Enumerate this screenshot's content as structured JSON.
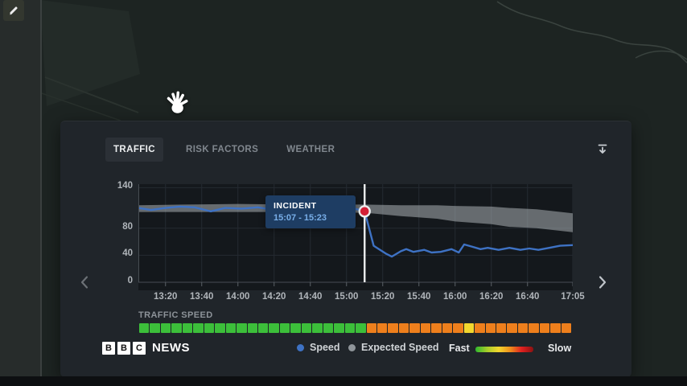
{
  "toolbar": {
    "edit_icon": "pencil-icon"
  },
  "map": {
    "cursor_icon": "open-hand-icon"
  },
  "panel": {
    "tabs": [
      {
        "label": "TRAFFIC",
        "active": true
      },
      {
        "label": "RISK FACTORS",
        "active": false
      },
      {
        "label": "WEATHER",
        "active": false
      }
    ],
    "collapse_icon": "collapse-down-icon",
    "prev_icon": "chevron-left-icon",
    "next_icon": "chevron-right-icon"
  },
  "chart_data": {
    "type": "line",
    "title": "",
    "xlabel": "",
    "ylabel": "",
    "x_start": "13:05",
    "x_end": "17:05",
    "x_ticks": [
      "13:20",
      "13:40",
      "14:00",
      "14:20",
      "14:40",
      "15:00",
      "15:20",
      "15:40",
      "16:00",
      "16:20",
      "16:40",
      "17:05"
    ],
    "y_ticks": [
      140,
      80,
      40,
      0
    ],
    "ylim": [
      0,
      145
    ],
    "grid": true,
    "incident": {
      "label": "INCIDENT",
      "time_range": "15:07 - 15:23",
      "marker_time": "15:10",
      "marker_value": 105,
      "marker_color": "#d21f36",
      "line_color": "#eceeef"
    },
    "series": [
      {
        "name": "Speed",
        "type": "line",
        "color": "#3e72c4",
        "points": [
          [
            "13:05",
            110
          ],
          [
            "13:12",
            107
          ],
          [
            "13:20",
            110
          ],
          [
            "13:28",
            112
          ],
          [
            "13:36",
            111
          ],
          [
            "13:45",
            105
          ],
          [
            "13:53",
            110
          ],
          [
            "14:02",
            109
          ],
          [
            "14:11",
            111
          ],
          [
            "14:20",
            107
          ],
          [
            "14:28",
            109
          ],
          [
            "14:34",
            110
          ],
          [
            "14:43",
            108
          ],
          [
            "14:52",
            109
          ],
          [
            "15:00",
            110
          ],
          [
            "15:06",
            108
          ],
          [
            "15:10",
            105
          ],
          [
            "15:15",
            54
          ],
          [
            "15:22",
            42
          ],
          [
            "15:25",
            38
          ],
          [
            "15:30",
            46
          ],
          [
            "15:33",
            49
          ],
          [
            "15:37",
            45
          ],
          [
            "15:43",
            48
          ],
          [
            "15:47",
            44
          ],
          [
            "15:52",
            45
          ],
          [
            "15:58",
            49
          ],
          [
            "16:02",
            44
          ],
          [
            "16:05",
            56
          ],
          [
            "16:09",
            53
          ],
          [
            "16:14",
            49
          ],
          [
            "16:18",
            51
          ],
          [
            "16:24",
            48
          ],
          [
            "16:30",
            51
          ],
          [
            "16:36",
            48
          ],
          [
            "16:41",
            50
          ],
          [
            "16:46",
            48
          ],
          [
            "16:52",
            51
          ],
          [
            "16:58",
            54
          ],
          [
            "17:05",
            55
          ]
        ]
      },
      {
        "name": "Expected Speed",
        "type": "band",
        "color": "#aab0b5",
        "points": [
          [
            "13:05",
            104,
            114
          ],
          [
            "13:30",
            104,
            115
          ],
          [
            "14:00",
            104,
            116
          ],
          [
            "14:30",
            104,
            115
          ],
          [
            "15:00",
            103,
            115
          ],
          [
            "15:10",
            103,
            115
          ],
          [
            "15:30",
            98,
            114
          ],
          [
            "15:50",
            94,
            114
          ],
          [
            "16:00",
            90,
            113
          ],
          [
            "16:20",
            86,
            112
          ],
          [
            "16:30",
            82,
            110
          ],
          [
            "16:45",
            80,
            108
          ],
          [
            "17:05",
            74,
            102
          ]
        ]
      }
    ]
  },
  "traffic_speed_bar": {
    "label": "TRAFFIC SPEED",
    "palette": {
      "green": "#3cbf3a",
      "orange": "#ee7f1c",
      "yellow": "#f2d72e"
    },
    "segments": [
      "green",
      "green",
      "green",
      "green",
      "green",
      "green",
      "green",
      "green",
      "green",
      "green",
      "green",
      "green",
      "green",
      "green",
      "green",
      "green",
      "green",
      "green",
      "green",
      "green",
      "green",
      "orange",
      "orange",
      "orange",
      "orange",
      "orange",
      "orange",
      "orange",
      "orange",
      "orange",
      "yellow",
      "orange",
      "orange",
      "orange",
      "orange",
      "orange",
      "orange",
      "orange",
      "orange",
      "orange"
    ]
  },
  "footer": {
    "logo": {
      "blocks": [
        "B",
        "B",
        "C"
      ],
      "text": "NEWS"
    },
    "legend": [
      {
        "label": "Speed",
        "color": "#3e72c4"
      },
      {
        "label": "Expected Speed",
        "color": "#8f959a"
      }
    ],
    "speed_scale": {
      "fast_label": "Fast",
      "slow_label": "Slow",
      "gradient": [
        "#2eb82e",
        "#a5cc2a",
        "#f2d72e",
        "#ef8f1c",
        "#e02020",
        "#8a1212"
      ]
    }
  }
}
